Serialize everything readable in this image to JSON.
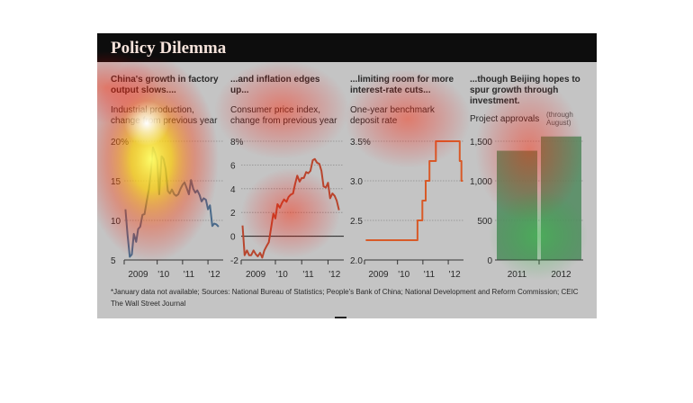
{
  "figure": {
    "title": "Policy Dilemma",
    "footnote": "*January data not available; Sources: National Bureau of Statistics; People's Bank of China; National Development and Reform Commission; CEIC",
    "source": "The Wall Street Journal"
  },
  "colors": {
    "title_bar": "#0d0d0d",
    "title_text": "#f4e2da",
    "header_text": "#2a2a2a",
    "line_blue": "#4a6a8a",
    "line_red": "#b8462e",
    "line_orange": "#d85a28",
    "bar_green": "#4f8a5e"
  },
  "panels": [
    {
      "headline": "China's growth in factory output slows....",
      "subtitle": "Industrial production, change from previous year"
    },
    {
      "headline": "...and inflation edges up...",
      "subtitle": "Consumer price index, change from previous year"
    },
    {
      "headline": "...limiting room for more interest-rate cuts...",
      "subtitle": "One-year benchmark deposit rate"
    },
    {
      "headline": "...though Beijing hopes to spur growth through investment.",
      "subtitle": "Project approvals",
      "note": "(through August)"
    }
  ],
  "chart_data": [
    {
      "type": "line",
      "title": "China's growth in factory output slows....",
      "ylabel": "Industrial production, change from previous year",
      "xticks": [
        "2009",
        "'10",
        "'11",
        "'12"
      ],
      "yticks": [
        "20%",
        "15",
        "10",
        "5"
      ],
      "ylim": [
        5,
        20
      ],
      "grid": true,
      "x": [
        2008.75,
        2008.83,
        2008.92,
        2009.0,
        2009.08,
        2009.17,
        2009.25,
        2009.33,
        2009.42,
        2009.5,
        2009.58,
        2009.67,
        2009.75,
        2009.83,
        2009.92,
        2010.0,
        2010.08,
        2010.17,
        2010.25,
        2010.33,
        2010.42,
        2010.5,
        2010.58,
        2010.67,
        2010.75,
        2010.83,
        2010.92,
        2011.0,
        2011.08,
        2011.17,
        2011.25,
        2011.33,
        2011.42,
        2011.5,
        2011.58,
        2011.67,
        2011.75,
        2011.83,
        2011.92,
        2012.0,
        2012.08,
        2012.17,
        2012.25,
        2012.33,
        2012.42
      ],
      "y": [
        11.4,
        8.2,
        5.4,
        5.7,
        8.3,
        7.3,
        8.9,
        9.2,
        10.7,
        10.8,
        12.3,
        13.9,
        16.1,
        19.2,
        18.5,
        17.5,
        13.3,
        18.1,
        17.8,
        16.5,
        13.7,
        13.4,
        13.9,
        13.3,
        13.1,
        13.3,
        14.0,
        14.5,
        14.8,
        14.0,
        13.3,
        15.1,
        14.0,
        13.5,
        13.8,
        13.2,
        12.4,
        12.8,
        12.6,
        11.4,
        11.9,
        9.3,
        9.6,
        9.5,
        9.2
      ],
      "series": [
        {
          "color": "#4a6a8a"
        }
      ]
    },
    {
      "type": "line",
      "title": "...and inflation edges up...",
      "ylabel": "Consumer price index, change from previous year",
      "xticks": [
        "2009",
        "'10",
        "'11",
        "'12"
      ],
      "yticks": [
        "8%",
        "6",
        "4",
        "2",
        "0",
        "-2"
      ],
      "ylim": [
        -2,
        8
      ],
      "grid": true,
      "x": [
        2008.75,
        2008.83,
        2008.92,
        2009.0,
        2009.08,
        2009.17,
        2009.25,
        2009.33,
        2009.42,
        2009.5,
        2009.58,
        2009.67,
        2009.75,
        2009.83,
        2009.92,
        2010.0,
        2010.08,
        2010.17,
        2010.25,
        2010.33,
        2010.42,
        2010.5,
        2010.58,
        2010.67,
        2010.75,
        2010.83,
        2010.92,
        2011.0,
        2011.08,
        2011.17,
        2011.25,
        2011.33,
        2011.42,
        2011.5,
        2011.58,
        2011.67,
        2011.75,
        2011.83,
        2011.92,
        2012.0,
        2012.08,
        2012.17,
        2012.25,
        2012.33,
        2012.42
      ],
      "y": [
        0.9,
        -1.6,
        -1.2,
        -1.6,
        -1.6,
        -1.2,
        -1.5,
        -1.7,
        -1.4,
        -1.8,
        -1.2,
        -0.8,
        -0.5,
        0.6,
        1.9,
        1.5,
        2.7,
        2.4,
        2.8,
        3.1,
        2.9,
        3.3,
        3.5,
        3.6,
        4.4,
        5.1,
        4.6,
        4.9,
        4.9,
        5.4,
        5.3,
        5.5,
        6.4,
        6.5,
        6.2,
        6.1,
        5.5,
        4.2,
        4.1,
        4.5,
        3.2,
        3.6,
        3.4,
        3.0,
        2.2
      ],
      "series": [
        {
          "color": "#b8462e"
        }
      ]
    },
    {
      "type": "line",
      "title": "...limiting room for more interest-rate cuts...",
      "ylabel": "One-year benchmark deposit rate",
      "xticks": [
        "2009",
        "'10",
        "'11",
        "'12"
      ],
      "yticks": [
        "3.5%",
        "3.0",
        "2.5",
        "2.0"
      ],
      "ylim": [
        2.0,
        3.5
      ],
      "grid": true,
      "x": [
        2008.75,
        2010.79,
        2010.79,
        2010.98,
        2010.98,
        2011.11,
        2011.11,
        2011.26,
        2011.26,
        2011.51,
        2011.51,
        2012.45,
        2012.45,
        2012.52,
        2012.52,
        2012.58
      ],
      "y": [
        2.25,
        2.25,
        2.5,
        2.5,
        2.75,
        2.75,
        3.0,
        3.0,
        3.25,
        3.25,
        3.5,
        3.5,
        3.25,
        3.25,
        3.0,
        3.0
      ],
      "series": [
        {
          "color": "#d85a28"
        }
      ]
    },
    {
      "type": "bar",
      "title": "...though Beijing hopes to spur growth through investment.",
      "ylabel": "Project approvals",
      "categories": [
        "2011",
        "2012"
      ],
      "values": [
        1380,
        1560
      ],
      "yticks": [
        "1,500",
        "1,000",
        "500",
        "0"
      ],
      "ylim": [
        0,
        1500
      ],
      "grid": true,
      "series": [
        {
          "color": "#4f8a5e"
        }
      ]
    }
  ]
}
